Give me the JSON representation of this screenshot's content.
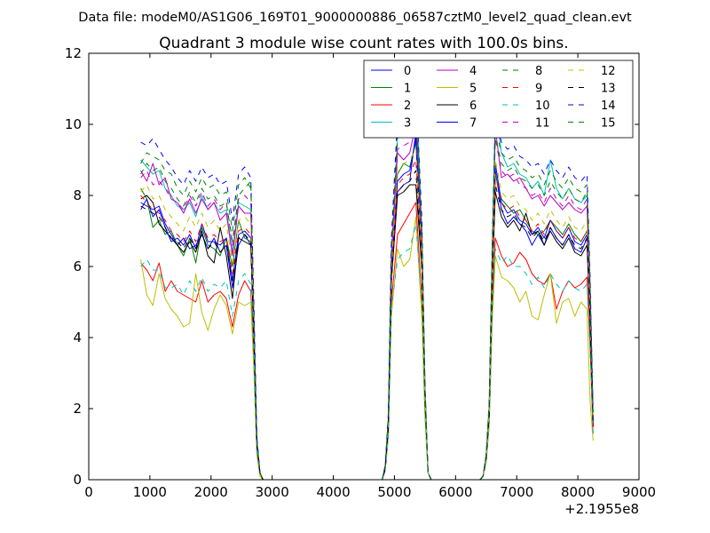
{
  "suptitle": "Data file: modeM0/AS1G06_169T01_9000000886_06587cztM0_level2_quad_clean.evt",
  "chart_data": {
    "type": "line",
    "title": "Quadrant 3 module wise count rates with 100.0s bins.",
    "xlabel": "",
    "ylabel": "",
    "xlim": [
      0,
      9000
    ],
    "ylim": [
      0,
      12
    ],
    "x_offset_label": "+2.1955e8",
    "x_ticks": [
      0,
      1000,
      2000,
      3000,
      4000,
      5000,
      6000,
      7000,
      8000,
      9000
    ],
    "x_tick_labels": [
      "0",
      "1000",
      "2000",
      "3000",
      "4000",
      "5000",
      "6000",
      "7000",
      "8000",
      "9000"
    ],
    "y_ticks": [
      0,
      2,
      4,
      6,
      8,
      10,
      12
    ],
    "y_tick_labels": [
      "0",
      "2",
      "4",
      "6",
      "8",
      "10",
      "12"
    ],
    "grid": false,
    "legend_position": "top-right",
    "x": [
      850,
      950,
      1050,
      1150,
      1250,
      1350,
      1450,
      1550,
      1650,
      1750,
      1850,
      1950,
      2050,
      2150,
      2250,
      2350,
      2450,
      2550,
      2650,
      2700,
      2750,
      2800,
      2850,
      2900,
      3500,
      4000,
      4500,
      4800,
      4850,
      4900,
      4950,
      5050,
      5150,
      5250,
      5350,
      5450,
      5500,
      5550,
      5600,
      6000,
      6400,
      6450,
      6500,
      6550,
      6600,
      6650,
      6750,
      6850,
      6950,
      7050,
      7150,
      7250,
      7350,
      7450,
      7550,
      7650,
      7750,
      7850,
      7950,
      8050,
      8150,
      8200,
      8250
    ],
    "series": [
      {
        "name": "0",
        "color": "#0000ff",
        "style": "solid",
        "values": [
          7.8,
          7.7,
          7.6,
          7.7,
          7.2,
          6.9,
          6.6,
          6.8,
          6.5,
          6.6,
          6.9,
          6.5,
          6.8,
          6.4,
          6.6,
          5.4,
          6.6,
          6.9,
          6.6,
          4.0,
          1.0,
          0.2,
          0,
          0,
          0,
          0,
          0,
          0,
          0.3,
          1.5,
          5.6,
          8.1,
          8.3,
          8.4,
          9.8,
          6.0,
          2.2,
          0.2,
          0,
          0,
          0,
          0.1,
          0.6,
          1.8,
          5.6,
          8.7,
          7.6,
          7.2,
          7.4,
          7.2,
          7.0,
          6.6,
          6.9,
          6.6,
          7.1,
          6.8,
          6.6,
          6.9,
          6.5,
          6.4,
          6.8,
          4.5,
          1.5
        ]
      },
      {
        "name": "1",
        "color": "#008000",
        "style": "solid",
        "values": [
          8.2,
          7.9,
          7.1,
          7.3,
          6.9,
          7.0,
          6.6,
          6.3,
          6.8,
          6.1,
          7.1,
          6.6,
          6.5,
          6.3,
          6.8,
          6.0,
          7.3,
          6.8,
          6.7,
          4.0,
          1.0,
          0.2,
          0,
          0,
          0,
          0,
          0,
          0,
          0.3,
          1.5,
          5.7,
          8.6,
          8.9,
          8.8,
          9.5,
          6.0,
          2.2,
          0.2,
          0,
          0,
          0,
          0.1,
          0.6,
          1.8,
          5.6,
          8.6,
          7.9,
          7.7,
          7.5,
          7.6,
          7.3,
          7.0,
          6.9,
          7.0,
          7.3,
          7.1,
          6.9,
          7.2,
          6.9,
          6.7,
          7.0,
          4.6,
          1.5
        ]
      },
      {
        "name": "2",
        "color": "#ff0000",
        "style": "solid",
        "values": [
          6.1,
          5.9,
          5.6,
          6.1,
          5.3,
          5.6,
          5.3,
          5.2,
          5.1,
          5.0,
          5.6,
          5.0,
          5.2,
          5.3,
          5.1,
          4.3,
          5.2,
          5.6,
          5.3,
          3.4,
          0.8,
          0.2,
          0,
          0,
          0,
          0,
          0,
          0,
          0.3,
          1.3,
          5.0,
          6.9,
          7.2,
          7.5,
          7.8,
          5.0,
          1.9,
          0.2,
          0,
          0,
          0,
          0.1,
          0.5,
          1.6,
          4.9,
          6.8,
          6.3,
          6.0,
          6.1,
          6.4,
          6.2,
          5.8,
          5.6,
          5.5,
          5.8,
          4.8,
          5.3,
          5.6,
          5.4,
          5.5,
          5.7,
          3.8,
          1.3
        ]
      },
      {
        "name": "3",
        "color": "#00bfbf",
        "style": "solid",
        "values": [
          9.0,
          8.8,
          8.6,
          8.7,
          8.2,
          8.0,
          7.7,
          7.6,
          7.8,
          7.4,
          8.0,
          7.6,
          7.8,
          7.5,
          7.6,
          6.4,
          7.8,
          7.7,
          7.6,
          4.5,
          1.1,
          0.2,
          0,
          0,
          0,
          0,
          0,
          0,
          0.4,
          1.7,
          6.3,
          9.6,
          10.2,
          10.0,
          11.5,
          6.8,
          2.5,
          0.2,
          0,
          0,
          0,
          0.1,
          0.7,
          2.0,
          6.4,
          10.5,
          9.2,
          8.8,
          8.9,
          8.6,
          8.5,
          8.2,
          8.4,
          8.0,
          9.0,
          8.2,
          7.9,
          8.2,
          7.9,
          7.8,
          8.0,
          5.3,
          1.7
        ]
      },
      {
        "name": "4",
        "color": "#bf00bf",
        "style": "solid",
        "values": [
          8.7,
          8.4,
          8.9,
          8.3,
          8.5,
          7.9,
          7.8,
          7.5,
          7.9,
          7.5,
          7.9,
          7.6,
          7.8,
          7.3,
          7.5,
          6.3,
          7.7,
          7.5,
          7.5,
          4.5,
          1.1,
          0.2,
          0,
          0,
          0,
          0,
          0,
          0,
          0.4,
          1.7,
          6.2,
          9.2,
          9.0,
          9.2,
          10.0,
          6.6,
          2.4,
          0.2,
          0,
          0,
          0,
          0.1,
          0.7,
          2.0,
          6.3,
          9.9,
          8.5,
          8.6,
          8.4,
          8.5,
          8.2,
          7.9,
          8.0,
          7.7,
          8.0,
          7.8,
          7.6,
          7.8,
          7.6,
          7.5,
          7.7,
          5.1,
          1.7
        ]
      },
      {
        "name": "5",
        "color": "#bfbf00",
        "style": "solid",
        "values": [
          6.2,
          5.2,
          4.9,
          5.8,
          5.1,
          4.8,
          4.6,
          4.3,
          4.4,
          5.8,
          4.7,
          4.2,
          4.8,
          5.2,
          4.9,
          4.1,
          5.0,
          4.9,
          5.0,
          3.1,
          0.7,
          0.1,
          0,
          0,
          0,
          0,
          0,
          0,
          0.3,
          1.2,
          4.6,
          6.5,
          6.0,
          6.2,
          7.4,
          4.5,
          1.7,
          0.2,
          0,
          0,
          0,
          0.1,
          0.5,
          1.5,
          4.5,
          6.3,
          5.7,
          5.6,
          5.4,
          5.0,
          5.3,
          4.6,
          4.5,
          5.2,
          5.8,
          4.4,
          5.0,
          5.1,
          4.6,
          5.0,
          4.8,
          2.2,
          1.1
        ]
      },
      {
        "name": "6",
        "color": "#000000",
        "style": "solid",
        "values": [
          7.9,
          8.0,
          7.8,
          7.2,
          7.0,
          6.8,
          6.6,
          6.4,
          6.7,
          6.4,
          7.0,
          6.3,
          6.1,
          7.1,
          6.3,
          5.1,
          6.8,
          6.7,
          6.6,
          4.0,
          1.0,
          0.2,
          0,
          0,
          0,
          0,
          0,
          0,
          0.3,
          1.5,
          5.6,
          8.0,
          8.1,
          8.3,
          8.3,
          5.9,
          2.2,
          0.2,
          0,
          0,
          0,
          0.1,
          0.6,
          1.8,
          5.5,
          8.1,
          7.4,
          7.1,
          7.3,
          7.0,
          7.5,
          6.9,
          7.0,
          6.6,
          7.0,
          6.7,
          6.5,
          6.8,
          6.4,
          6.3,
          6.6,
          4.4,
          1.5
        ]
      },
      {
        "name": "7",
        "color": "#0000ff",
        "style": "solid",
        "values": [
          7.6,
          7.9,
          7.4,
          7.6,
          7.1,
          6.7,
          6.8,
          6.6,
          6.9,
          6.5,
          7.2,
          6.7,
          6.7,
          6.6,
          6.8,
          5.6,
          6.9,
          7.0,
          6.8,
          4.1,
          1.0,
          0.2,
          0,
          0,
          0,
          0,
          0,
          0,
          0.3,
          1.5,
          5.8,
          8.4,
          8.6,
          8.7,
          9.6,
          6.1,
          2.3,
          0.2,
          0,
          0,
          0,
          0.1,
          0.6,
          1.9,
          5.7,
          8.9,
          7.8,
          7.5,
          7.6,
          7.3,
          7.2,
          6.9,
          7.1,
          6.8,
          7.3,
          7.0,
          6.8,
          7.1,
          6.7,
          6.6,
          6.9,
          4.6,
          1.5
        ]
      },
      {
        "name": "8",
        "color": "#008000",
        "style": "dashed",
        "values": [
          8.9,
          9.2,
          9.1,
          9.0,
          8.7,
          8.6,
          8.2,
          8.0,
          8.4,
          8.1,
          8.5,
          8.2,
          8.3,
          8.0,
          8.1,
          7.0,
          8.3,
          8.5,
          8.2,
          4.8,
          1.2,
          0.2,
          0,
          0,
          0,
          0,
          0,
          0,
          0.4,
          1.8,
          6.6,
          9.8,
          10.0,
          10.1,
          10.5,
          7.0,
          2.6,
          0.2,
          0,
          0,
          0,
          0.1,
          0.7,
          2.1,
          6.6,
          9.9,
          9.2,
          9.0,
          9.1,
          8.8,
          8.7,
          8.5,
          8.6,
          8.3,
          8.7,
          8.4,
          8.2,
          8.5,
          8.2,
          8.1,
          8.3,
          5.5,
          1.8
        ]
      },
      {
        "name": "9",
        "color": "#ff0000",
        "style": "dashed",
        "values": [
          8.0,
          7.8,
          7.6,
          7.5,
          7.3,
          7.0,
          6.9,
          6.7,
          7.0,
          6.7,
          7.2,
          6.8,
          6.9,
          6.7,
          6.8,
          5.8,
          7.0,
          7.1,
          6.9,
          4.1,
          1.0,
          0.2,
          0,
          0,
          0,
          0,
          0,
          0,
          0.3,
          1.5,
          5.8,
          8.3,
          8.5,
          8.6,
          9.0,
          6.1,
          2.3,
          0.2,
          0,
          0,
          0,
          0.1,
          0.6,
          1.9,
          5.7,
          8.6,
          7.8,
          7.6,
          7.7,
          7.4,
          7.3,
          7.0,
          7.2,
          6.9,
          7.3,
          7.0,
          6.8,
          7.1,
          6.8,
          6.7,
          7.0,
          4.6,
          1.5
        ]
      },
      {
        "name": "10",
        "color": "#00bfbf",
        "style": "dashed",
        "values": [
          6.0,
          6.2,
          5.9,
          5.9,
          5.4,
          5.4,
          5.5,
          5.2,
          5.6,
          5.3,
          5.7,
          5.3,
          5.5,
          5.4,
          5.6,
          4.6,
          5.6,
          5.8,
          5.5,
          3.4,
          0.8,
          0.2,
          0,
          0,
          0,
          0,
          0,
          0,
          0.3,
          1.2,
          4.8,
          6.2,
          6.4,
          6.5,
          7.2,
          5.0,
          1.9,
          0.2,
          0,
          0,
          0,
          0.1,
          0.5,
          1.6,
          4.8,
          6.5,
          6.1,
          6.3,
          6.0,
          6.0,
          5.8,
          5.5,
          5.7,
          5.4,
          5.8,
          5.5,
          5.3,
          5.6,
          5.4,
          5.3,
          5.5,
          3.6,
          1.2
        ]
      },
      {
        "name": "11",
        "color": "#bf00bf",
        "style": "dashed",
        "values": [
          8.5,
          8.7,
          8.3,
          8.4,
          8.2,
          7.9,
          7.8,
          7.6,
          8.0,
          7.7,
          8.1,
          7.7,
          7.9,
          7.6,
          7.8,
          6.6,
          7.9,
          8.0,
          7.8,
          4.6,
          1.1,
          0.2,
          0,
          0,
          0,
          0,
          0,
          0,
          0.4,
          1.7,
          6.3,
          9.3,
          9.4,
          9.5,
          10.2,
          6.7,
          2.5,
          0.2,
          0,
          0,
          0,
          0.1,
          0.7,
          2.0,
          6.3,
          9.6,
          8.7,
          8.5,
          8.6,
          8.3,
          8.2,
          8.0,
          8.1,
          7.8,
          8.2,
          7.9,
          7.7,
          8.0,
          7.7,
          7.6,
          7.9,
          5.2,
          1.7
        ]
      },
      {
        "name": "12",
        "color": "#bfbf00",
        "style": "dashed",
        "values": [
          8.1,
          8.3,
          7.9,
          8.0,
          7.6,
          7.4,
          7.2,
          7.0,
          7.4,
          7.1,
          7.5,
          7.1,
          7.3,
          7.0,
          7.2,
          6.1,
          7.3,
          7.4,
          7.2,
          4.3,
          1.0,
          0.2,
          0,
          0,
          0,
          0,
          0,
          0,
          0.3,
          1.6,
          6.0,
          8.8,
          8.9,
          9.0,
          9.3,
          6.3,
          2.4,
          0.2,
          0,
          0,
          0,
          0.1,
          0.6,
          1.9,
          5.9,
          9.0,
          8.1,
          7.9,
          8.0,
          7.7,
          7.6,
          7.3,
          7.5,
          7.2,
          7.6,
          7.3,
          7.1,
          7.4,
          7.1,
          7.0,
          7.3,
          4.8,
          1.6
        ]
      },
      {
        "name": "13",
        "color": "#000000",
        "style": "dashed",
        "values": [
          7.7,
          7.6,
          7.5,
          7.4,
          7.1,
          6.8,
          6.7,
          6.5,
          6.8,
          6.5,
          6.9,
          6.5,
          6.7,
          6.4,
          6.6,
          5.6,
          6.8,
          6.9,
          6.7,
          4.0,
          1.0,
          0.2,
          0,
          0,
          0,
          0,
          0,
          0,
          0.3,
          1.5,
          5.6,
          8.1,
          8.3,
          8.4,
          8.7,
          5.9,
          2.2,
          0.2,
          0,
          0,
          0,
          0.1,
          0.6,
          1.8,
          5.5,
          8.3,
          7.6,
          7.4,
          7.5,
          7.2,
          7.1,
          6.8,
          7.0,
          6.7,
          7.1,
          6.8,
          6.6,
          6.9,
          6.6,
          6.5,
          6.8,
          4.5,
          1.5
        ]
      },
      {
        "name": "14",
        "color": "#0000ff",
        "style": "dashed",
        "values": [
          9.5,
          9.4,
          9.6,
          9.3,
          9.0,
          8.8,
          8.5,
          8.3,
          8.7,
          8.4,
          8.8,
          8.5,
          8.6,
          8.3,
          8.4,
          7.3,
          8.6,
          8.8,
          8.5,
          5.0,
          1.2,
          0.2,
          0,
          0,
          0,
          0,
          0,
          0,
          0.4,
          1.9,
          6.8,
          10.2,
          10.4,
          10.5,
          11.0,
          7.3,
          2.7,
          0.2,
          0,
          0,
          0,
          0.1,
          0.7,
          2.2,
          6.8,
          10.2,
          9.5,
          9.3,
          9.4,
          9.1,
          9.0,
          8.8,
          8.9,
          8.6,
          9.0,
          8.7,
          8.5,
          8.8,
          8.5,
          8.4,
          8.6,
          5.7,
          1.9
        ]
      },
      {
        "name": "15",
        "color": "#008000",
        "style": "dashed",
        "values": [
          8.6,
          8.9,
          8.7,
          8.8,
          8.4,
          8.2,
          7.9,
          7.7,
          8.1,
          7.8,
          8.2,
          7.9,
          8.0,
          7.7,
          7.8,
          6.7,
          8.0,
          8.2,
          8.4,
          4.7,
          1.1,
          0.2,
          0,
          0,
          0,
          0,
          0,
          0,
          0.4,
          1.8,
          6.5,
          9.6,
          9.8,
          9.9,
          10.3,
          6.8,
          2.5,
          0.2,
          0,
          0,
          0,
          0.1,
          0.7,
          2.1,
          6.5,
          9.7,
          8.9,
          8.7,
          8.8,
          8.5,
          8.4,
          8.2,
          8.3,
          8.0,
          8.4,
          8.1,
          7.9,
          8.2,
          7.9,
          7.8,
          8.1,
          5.4,
          1.8
        ]
      }
    ]
  }
}
